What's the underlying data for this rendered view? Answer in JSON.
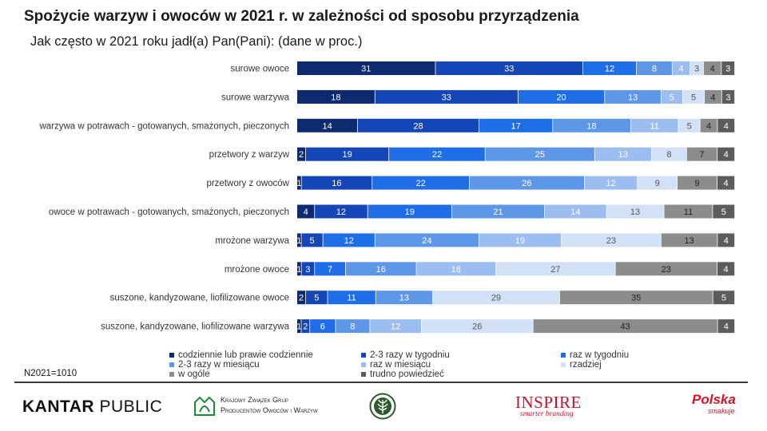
{
  "header": {
    "title": "Spożycie warzyw i owoców w 2021 r. w zależności od sposobu przyrządzenia",
    "subtitle": "Jak często w 2021 roku jadł(a) Pan(Pani): (dane w proc.)"
  },
  "chart_data": {
    "type": "bar",
    "orientation": "horizontal",
    "stacked": true,
    "unit": "%",
    "categories": [
      "surowe owoce",
      "surowe warzywa",
      "warzywa w potrawach - gotowanych, smażonych, pieczonych",
      "przetwory z warzyw",
      "przetwory z owoców",
      "owoce w potrawach - gotowanych, smażonych, pieczonych",
      "mrożone warzywa",
      "mrożone owoce",
      "suszone, kandyzowane, liofilizowane owoce",
      "suszone, kandyzowane, liofilizowane warzywa"
    ],
    "series": [
      {
        "name": "codziennie lub prawie codziennie",
        "color": "#0d2a6e",
        "text_color": "#ffffff",
        "values": [
          31,
          18,
          14,
          2,
          1,
          4,
          1,
          1,
          2,
          1
        ]
      },
      {
        "name": "2-3 razy w tygodniu",
        "color": "#1546b8",
        "text_color": "#ffffff",
        "values": [
          33,
          33,
          28,
          19,
          16,
          12,
          5,
          3,
          5,
          2
        ]
      },
      {
        "name": "raz w tygodniu",
        "color": "#1f6ee8",
        "text_color": "#ffffff",
        "values": [
          12,
          20,
          17,
          22,
          22,
          19,
          12,
          7,
          11,
          6
        ]
      },
      {
        "name": "2-3 razy w miesiącu",
        "color": "#5f97e8",
        "text_color": "#ffffff",
        "values": [
          8,
          13,
          18,
          25,
          26,
          21,
          24,
          16,
          13,
          8
        ]
      },
      {
        "name": "raz w miesiącu",
        "color": "#9cbdf0",
        "text_color": "#ffffff",
        "values": [
          4,
          5,
          11,
          13,
          12,
          14,
          19,
          18,
          0,
          12
        ]
      },
      {
        "name": "rzadziej",
        "color": "#d3e1f6",
        "text_color": "#555555",
        "values": [
          3,
          5,
          5,
          8,
          9,
          13,
          23,
          27,
          29,
          26
        ]
      },
      {
        "name": "w ogóle",
        "color": "#8c8c8c",
        "text_color": "#222222",
        "values": [
          4,
          4,
          4,
          7,
          9,
          11,
          13,
          23,
          35,
          43
        ]
      },
      {
        "name": "trudno powiedzieć",
        "color": "#5c5c5c",
        "text_color": "#ffffff",
        "values": [
          3,
          3,
          4,
          4,
          4,
          5,
          4,
          4,
          5,
          4
        ]
      }
    ],
    "xlim": [
      0,
      100
    ],
    "legend": "bottom"
  },
  "footer": {
    "sample_note": "N2021=1010",
    "logos": {
      "kantar_bold": "KANTAR",
      "kantar_rest": " PUBLIC",
      "krzg_line1": "Krajowy Związek Grup",
      "krzg_line2": "Producentów Owoców i Warzyw",
      "inspire_main": "INSPIRE",
      "inspire_sub": "smarter branding",
      "polska_main": "Polska",
      "polska_sub": "smakuje"
    },
    "colors": {
      "inspire": "#c8102e",
      "polska": "#d4142a",
      "krzg": "#1d8a3a"
    }
  }
}
